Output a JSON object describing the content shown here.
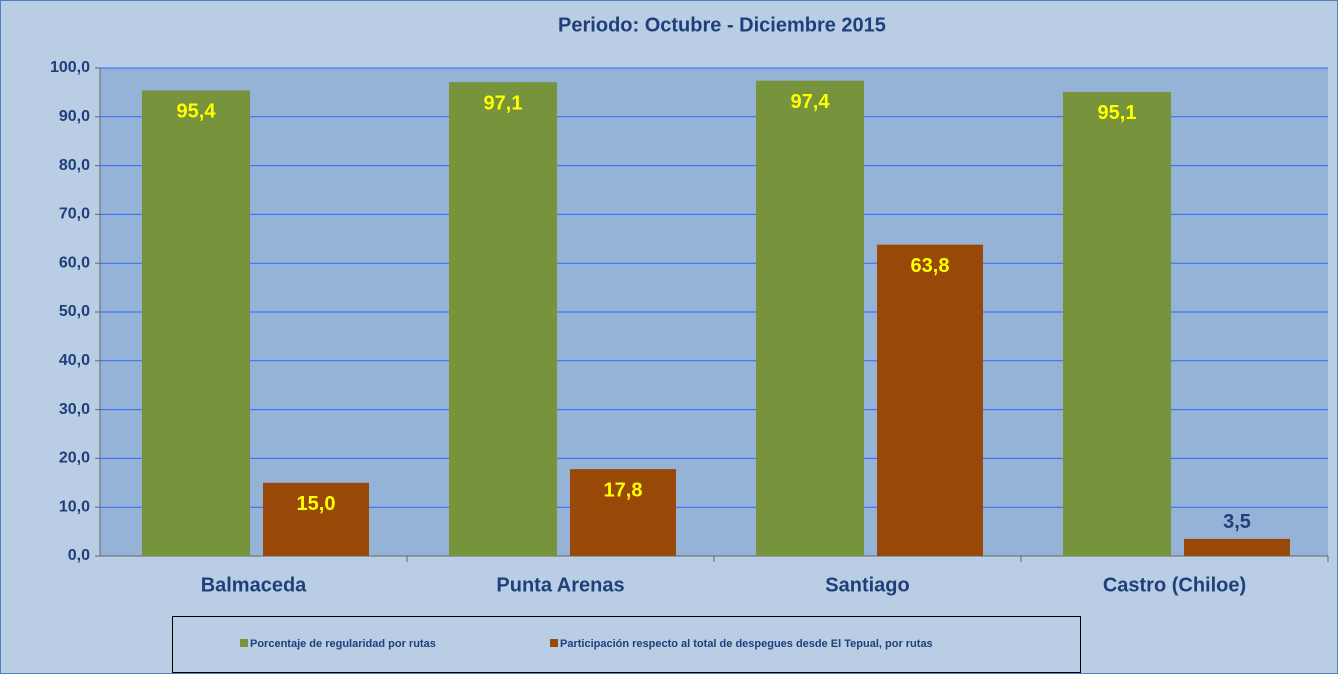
{
  "chart_data": {
    "type": "bar",
    "title": "Periodo: Octubre - Diciembre  2015",
    "categories": [
      "Balmaceda",
      "Punta Arenas",
      "Santiago",
      "Castro (Chiloe)"
    ],
    "series": [
      {
        "name": "Porcentaje de regularidad por rutas",
        "color": "#77933c",
        "values": [
          95.4,
          97.1,
          97.4,
          95.1
        ],
        "value_labels": [
          "95,4",
          "97,1",
          "97,4",
          "95,1"
        ]
      },
      {
        "name": "Participación respecto al total de despegues desde El Tepual, por rutas",
        "color": "#984807",
        "values": [
          15.0,
          17.8,
          63.8,
          3.5
        ],
        "value_labels": [
          "15,0",
          "17,8",
          "63,8",
          "3,5"
        ]
      }
    ],
    "ylim": [
      0,
      100
    ],
    "yticks": [
      {
        "value": 0,
        "label": "0,0"
      },
      {
        "value": 10,
        "label": "10,0"
      },
      {
        "value": 20,
        "label": "20,0"
      },
      {
        "value": 30,
        "label": "30,0"
      },
      {
        "value": 40,
        "label": "40,0"
      },
      {
        "value": 50,
        "label": "50,0"
      },
      {
        "value": 60,
        "label": "60,0"
      },
      {
        "value": 70,
        "label": "70,0"
      },
      {
        "value": 80,
        "label": "80,0"
      },
      {
        "value": 90,
        "label": "90,0"
      },
      {
        "value": 100,
        "label": "100,0"
      }
    ],
    "grid": true,
    "legend": "bottom"
  }
}
